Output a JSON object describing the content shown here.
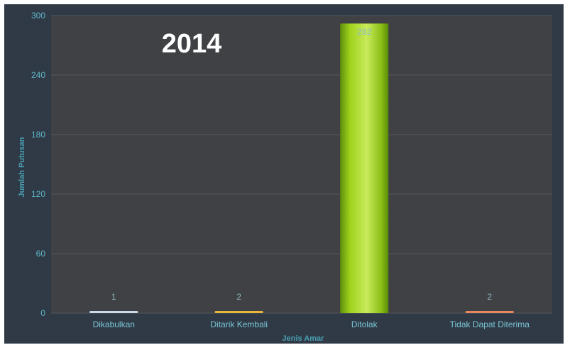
{
  "chart_data": {
    "type": "bar",
    "title": "2014",
    "xlabel": "Jenis Amar",
    "ylabel": "Jumlah Putusan",
    "categories": [
      "Dikabulkan",
      "Ditarik Kembali",
      "Ditolak",
      "Tidak Dapat Diterima"
    ],
    "values": [
      1,
      2,
      292,
      2
    ],
    "data_labels": [
      "1",
      "2",
      "292",
      "2"
    ],
    "ylim": [
      0,
      300
    ],
    "yticks": [
      "0",
      "60",
      "120",
      "180",
      "240",
      "300"
    ],
    "grid": true,
    "legend": "none",
    "colors": {
      "background": "#2f3a46",
      "plot_area": "#3f4144",
      "grid": "#55585b",
      "bars": [
        "#c9d8ea",
        "#e7b739",
        "#8ec21a",
        "#e8885c"
      ]
    }
  }
}
